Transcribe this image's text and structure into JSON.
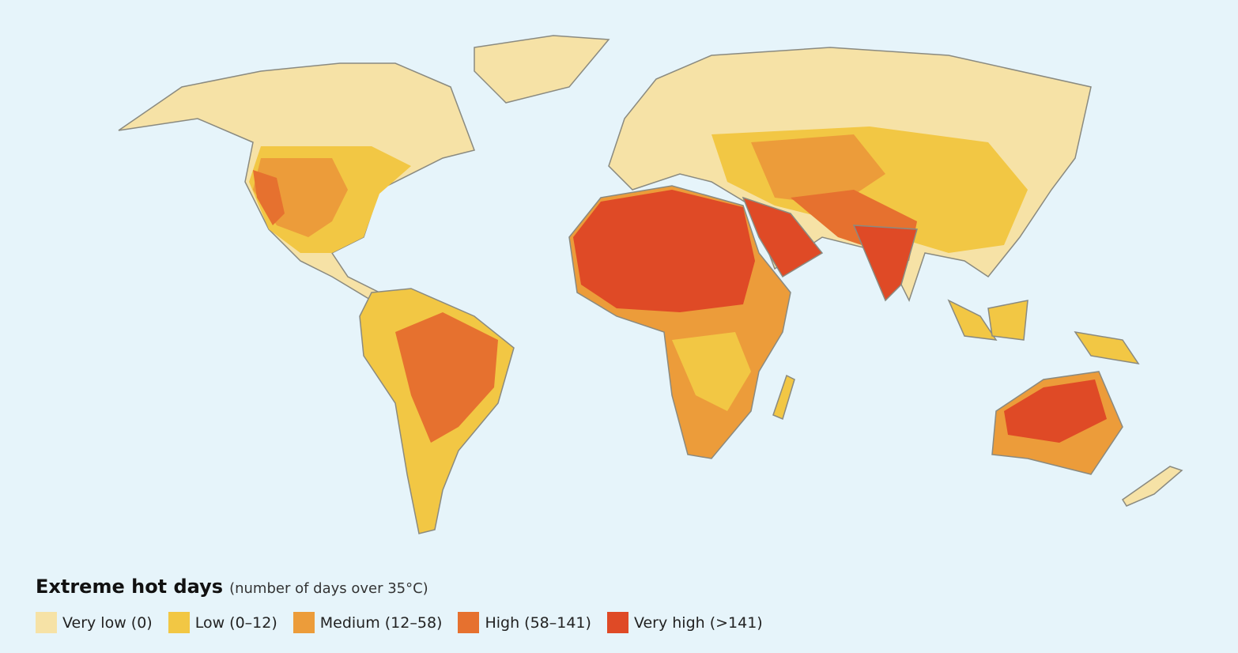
{
  "legend": {
    "title": "Extreme hot days",
    "subtitle": "(number of days over 35°C)",
    "items": [
      {
        "label": "Very low (0)",
        "color": "#f6e2a6"
      },
      {
        "label": "Low (0–12)",
        "color": "#f2c744"
      },
      {
        "label": "Medium (12–58)",
        "color": "#ec9c3a"
      },
      {
        "label": "High (58–141)",
        "color": "#e6712f"
      },
      {
        "label": "Very high (>141)",
        "color": "#df4a26"
      }
    ]
  }
}
